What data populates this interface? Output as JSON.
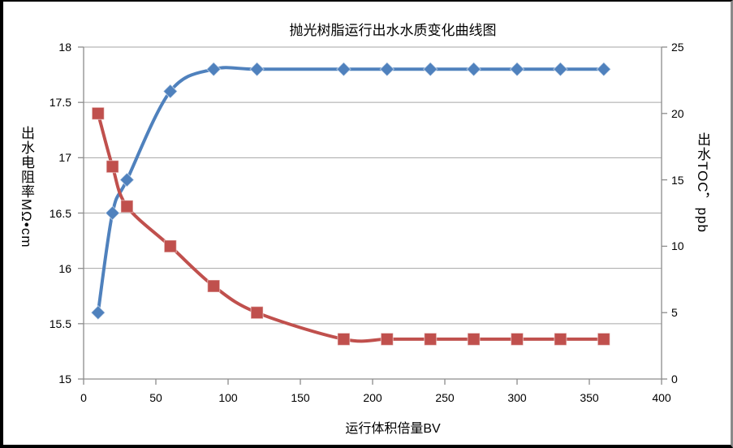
{
  "chart_data": {
    "type": "line",
    "title": "抛光树脂运行出水水质变化曲线图",
    "xlabel": "运行体积倍量BV",
    "ylabel_left": "出水电阻率MΩ•cm",
    "ylabel_right": "出水TOC，ppb",
    "x": [
      10,
      20,
      30,
      60,
      90,
      120,
      180,
      210,
      240,
      270,
      300,
      330,
      360
    ],
    "series": [
      {
        "name": "出水电阻率",
        "axis": "left",
        "marker": "diamond",
        "color": "#4F81BD",
        "values": [
          15.6,
          16.5,
          16.8,
          17.6,
          17.8,
          17.8,
          17.8,
          17.8,
          17.8,
          17.8,
          17.8,
          17.8,
          17.8
        ]
      },
      {
        "name": "出水TOC",
        "axis": "right",
        "marker": "square",
        "color": "#C0504D",
        "values": [
          20,
          16,
          13,
          10,
          7,
          5,
          3,
          3,
          3,
          3,
          3,
          3,
          3
        ]
      }
    ],
    "axes": {
      "x": {
        "min": 0,
        "max": 400,
        "ticks": [
          0,
          50,
          100,
          150,
          200,
          250,
          300,
          350,
          400
        ]
      },
      "left": {
        "min": 15,
        "max": 18,
        "ticks": [
          15,
          15.5,
          16,
          16.5,
          17,
          17.5,
          18
        ]
      },
      "right": {
        "min": 0,
        "max": 25,
        "ticks": [
          0,
          5,
          10,
          15,
          20,
          25
        ]
      }
    },
    "grid": true,
    "legend": "none",
    "smooth_lines": true,
    "colors": {
      "gridline": "#A6A6A6",
      "axis": "#8C8C8C",
      "text": "#000000",
      "series_blue": "#4F81BD",
      "series_red": "#C0504D"
    }
  }
}
